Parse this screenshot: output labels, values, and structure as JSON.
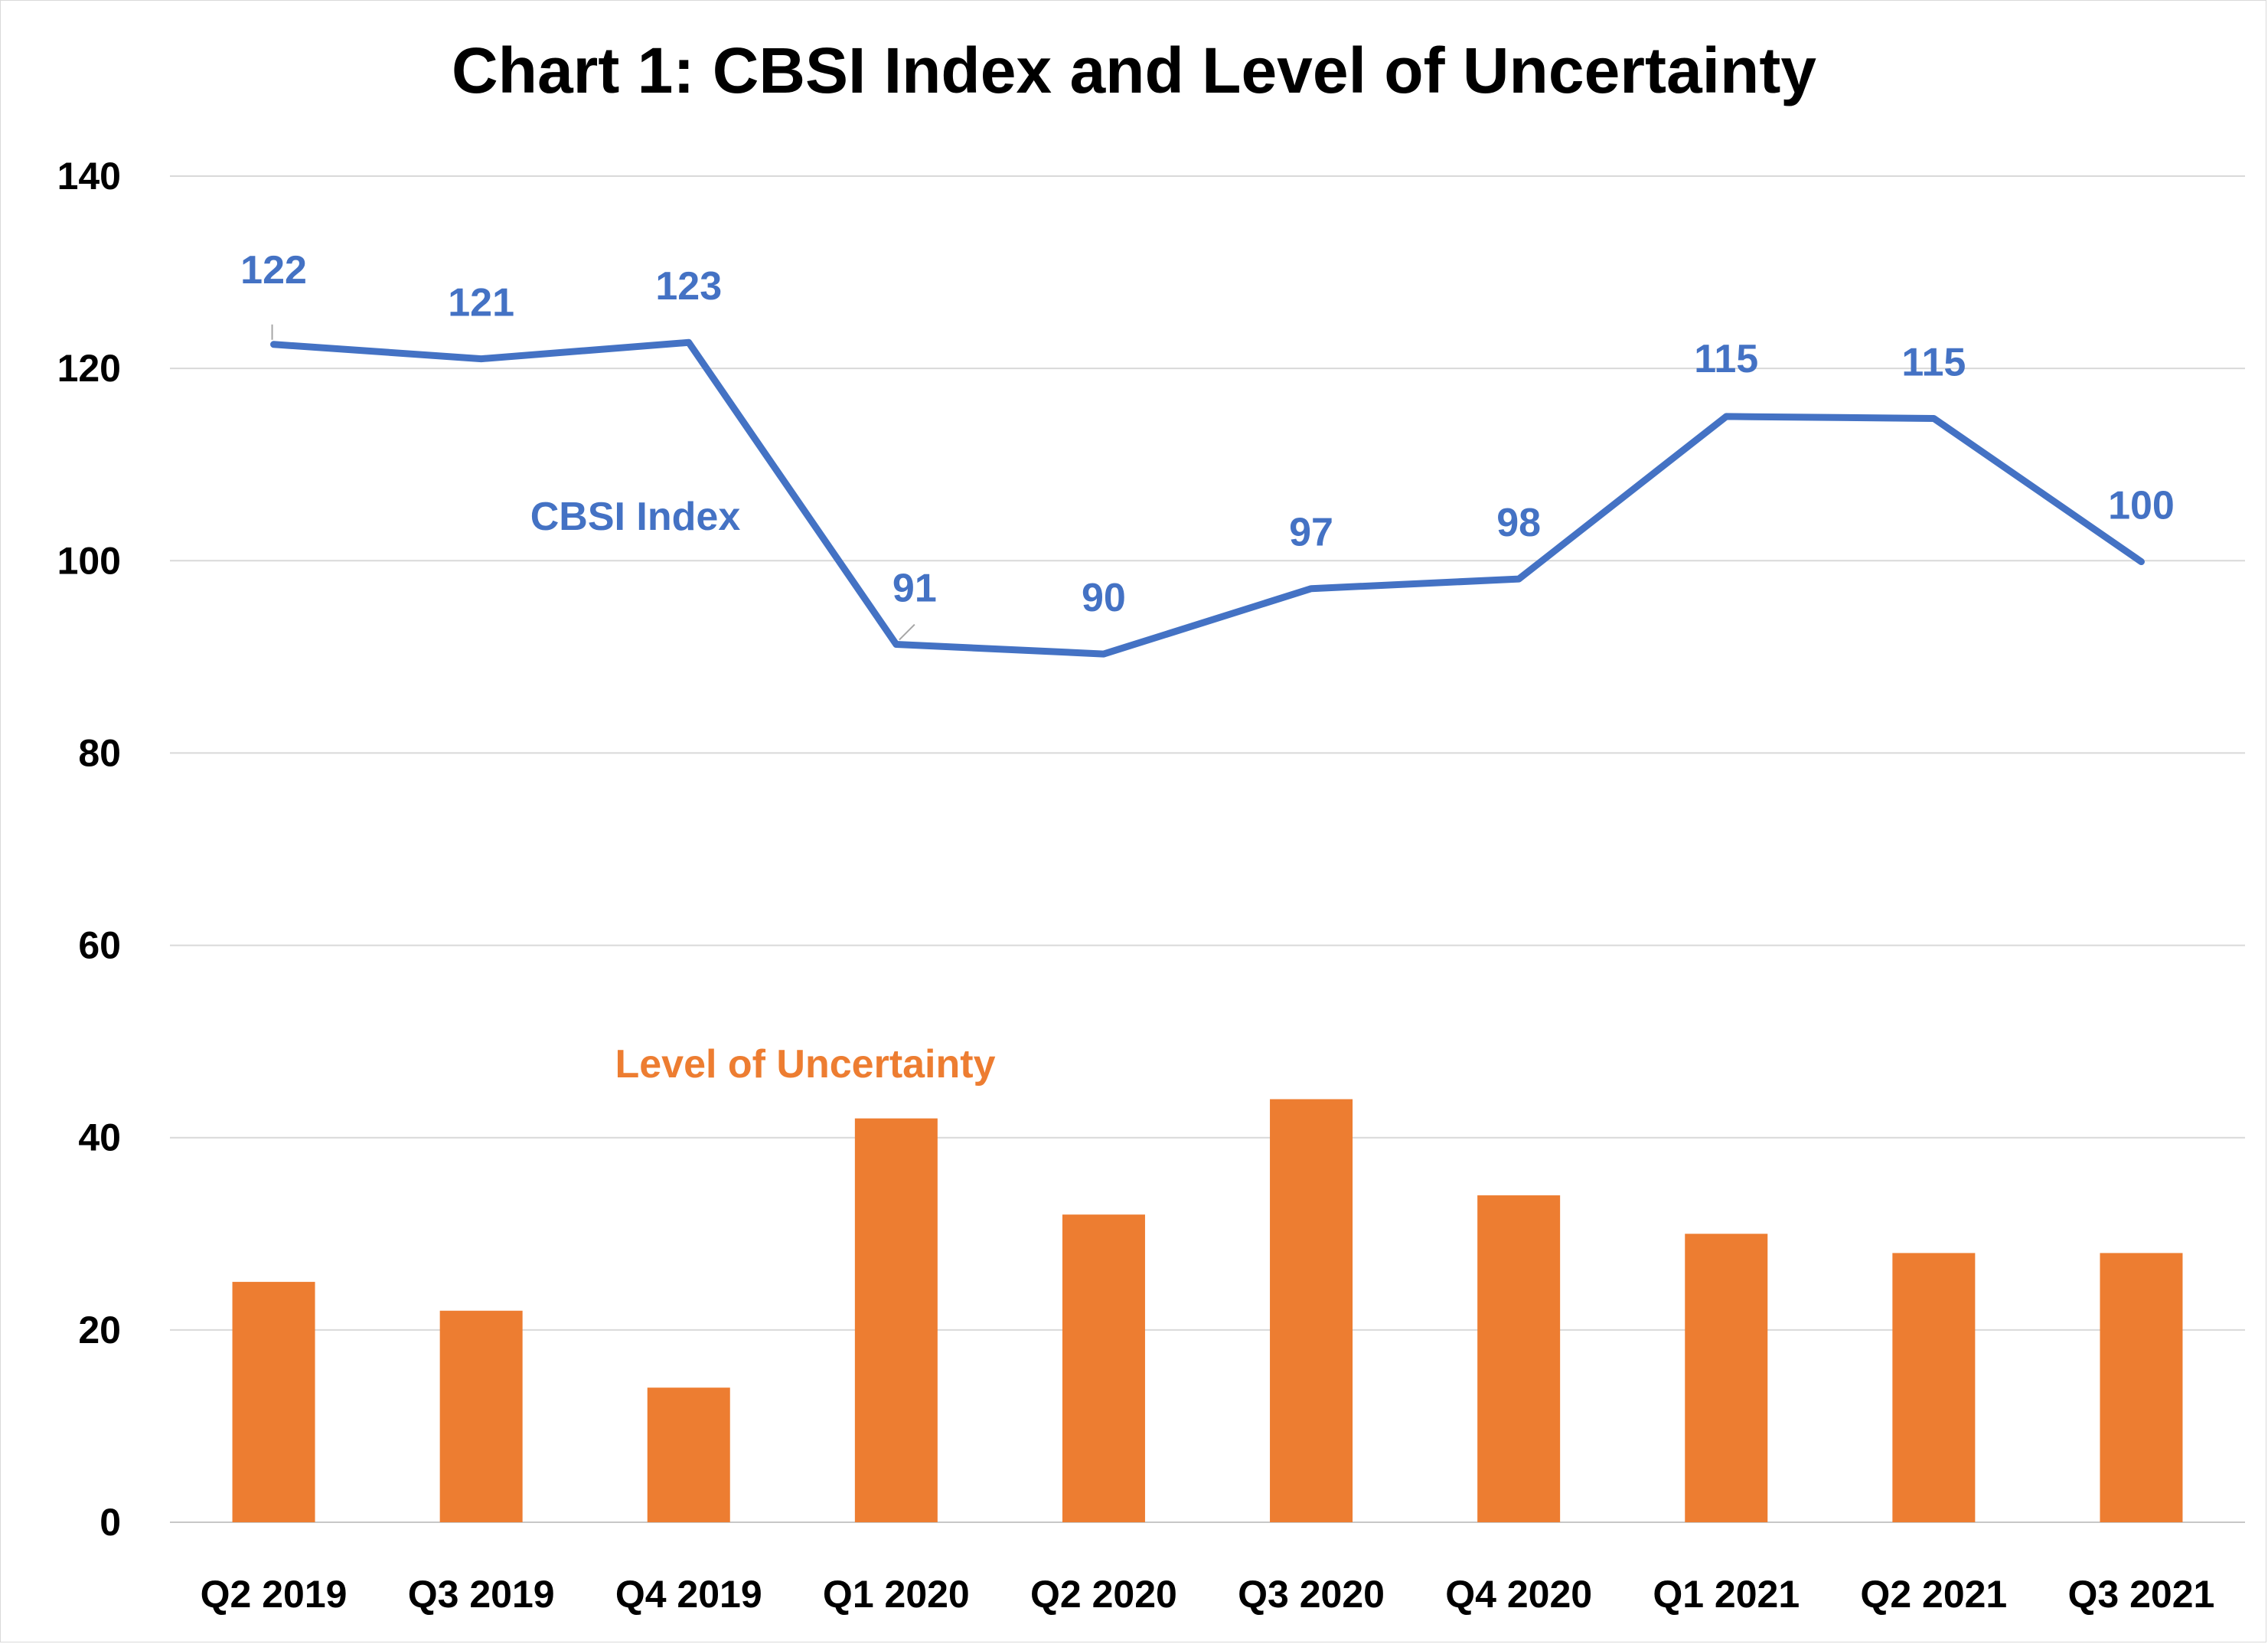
{
  "chart_data": {
    "type": "bar+line",
    "title": "Chart 1: CBSI Index and Level of Uncertainty",
    "categories": [
      "Q2 2019",
      "Q3 2019",
      "Q4 2019",
      "Q1 2020",
      "Q2 2020",
      "Q3 2020",
      "Q4 2020",
      "Q1 2021",
      "Q2 2021",
      "Q3 2021"
    ],
    "y_ticks": [
      "0",
      "20",
      "40",
      "60",
      "80",
      "100",
      "120",
      "140"
    ],
    "ylim": [
      0,
      140
    ],
    "grid": true,
    "series": [
      {
        "name": "CBSI Index",
        "type": "line",
        "color": "#4472C4",
        "values": [
          122.5,
          121,
          122.7,
          91.3,
          90.3,
          97.1,
          98.1,
          115,
          114.8,
          99.9
        ],
        "data_labels": [
          "122",
          "121",
          "123",
          "91",
          "90",
          "97",
          "98",
          "115",
          "115",
          "100"
        ]
      },
      {
        "name": "Level of Uncertainty",
        "type": "bar",
        "color": "#ED7D31",
        "values": [
          25,
          22,
          14,
          42,
          32,
          44,
          34,
          30,
          28,
          28
        ]
      }
    ]
  }
}
